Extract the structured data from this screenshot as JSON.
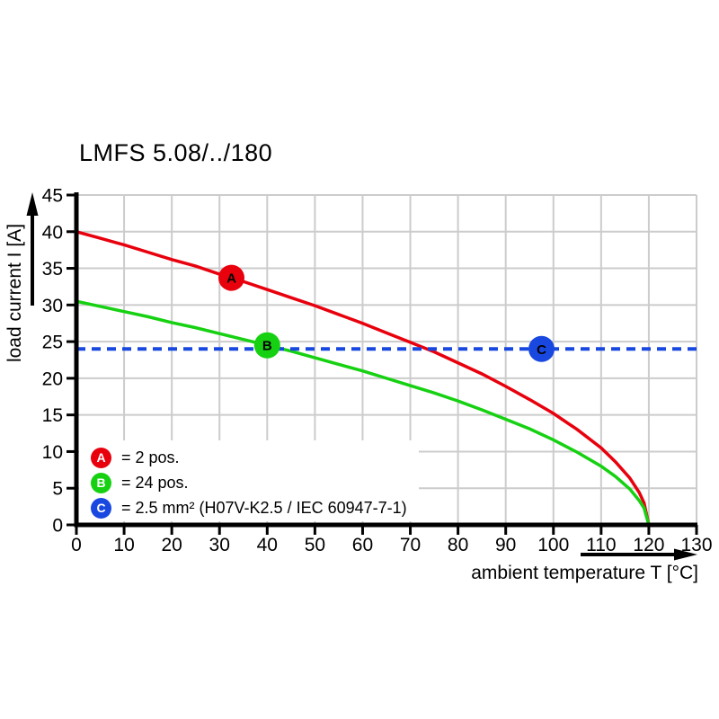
{
  "title": "LMFS 5.08/../180",
  "chart_data": {
    "type": "line",
    "title": "LMFS 5.08/../180",
    "xlabel": "ambient temperature T [°C]",
    "ylabel": "load current I [A]",
    "xlim": [
      0,
      130
    ],
    "ylim": [
      0,
      45
    ],
    "x_ticks": [
      0,
      10,
      20,
      30,
      40,
      50,
      60,
      70,
      80,
      90,
      100,
      110,
      120,
      130
    ],
    "y_ticks": [
      0,
      5,
      10,
      15,
      20,
      25,
      30,
      35,
      40,
      45
    ],
    "grid": true,
    "legend_position": "inside-bottom-left",
    "colors": {
      "curve_a": "#e8000d",
      "curve_b": "#16d112",
      "curve_c": "#1848e0",
      "grid": "#cccccc",
      "axis": "#000000"
    },
    "series": [
      {
        "id": "A",
        "name": "2 pos.",
        "style": "solid",
        "color": "#e8000d",
        "x": [
          0,
          5,
          10,
          15,
          20,
          25,
          30,
          35,
          40,
          45,
          50,
          55,
          60,
          65,
          70,
          75,
          80,
          85,
          90,
          95,
          100,
          105,
          110,
          113,
          116,
          118,
          119,
          120
        ],
        "y": [
          40,
          39.1,
          38.2,
          37.2,
          36.2,
          35.3,
          34.2,
          33.2,
          32.1,
          31,
          29.9,
          28.7,
          27.5,
          26.2,
          24.9,
          23.6,
          22.1,
          20.6,
          18.9,
          17.1,
          15.2,
          13,
          10.5,
          8.6,
          6.4,
          4.4,
          3,
          0
        ]
      },
      {
        "id": "B",
        "name": "24 pos.",
        "style": "solid",
        "color": "#16d112",
        "x": [
          0,
          5,
          10,
          15,
          20,
          25,
          30,
          35,
          40,
          45,
          50,
          55,
          60,
          65,
          70,
          75,
          80,
          85,
          90,
          95,
          100,
          105,
          110,
          113,
          116,
          118,
          119,
          120
        ],
        "y": [
          30.5,
          29.8,
          29.1,
          28.4,
          27.6,
          26.9,
          26.1,
          25.3,
          24.5,
          23.7,
          22.8,
          21.9,
          21,
          20,
          19,
          18,
          16.9,
          15.7,
          14.4,
          13.1,
          11.6,
          9.9,
          8,
          6.6,
          4.9,
          3.3,
          2.3,
          0
        ]
      },
      {
        "id": "C",
        "name": "2.5 mm² (H07V-K2.5 / IEC 60947-7-1)",
        "style": "dashed",
        "color": "#1848e0",
        "x": [
          0,
          130
        ],
        "y": [
          24,
          24
        ]
      }
    ],
    "markers": [
      {
        "letter": "A",
        "series": "A",
        "x": 32.5
      },
      {
        "letter": "B",
        "series": "B",
        "x": 40
      },
      {
        "letter": "C",
        "series": "C",
        "x": 97.5
      }
    ]
  },
  "legend": {
    "items": [
      {
        "letter": "A",
        "color": "#e8000d",
        "label": "= 2 pos."
      },
      {
        "letter": "B",
        "color": "#16d112",
        "label": "= 24 pos."
      },
      {
        "letter": "C",
        "color": "#1848e0",
        "label": "= 2.5 mm² (H07V-K2.5 / IEC 60947-7-1)"
      }
    ]
  }
}
